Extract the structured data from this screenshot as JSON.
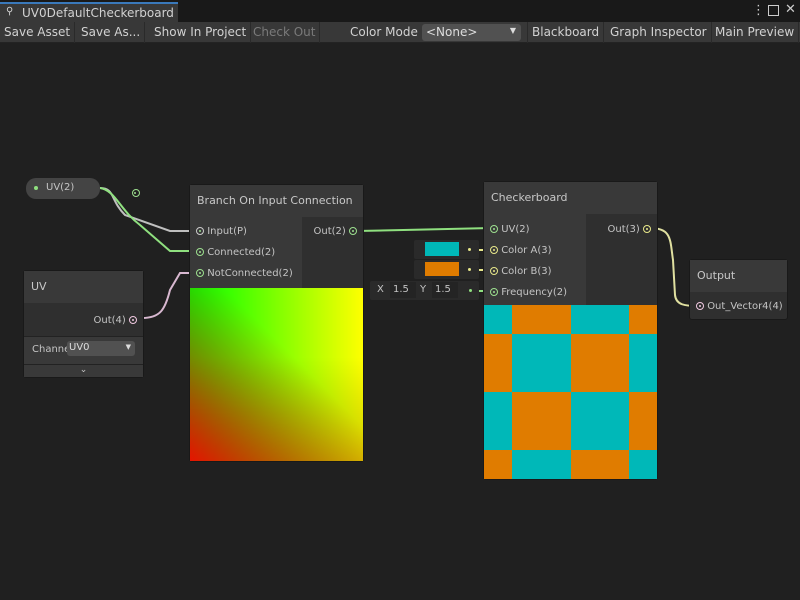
{
  "window": {
    "tab_title": "UV0DefaultCheckerboard",
    "menu_icon": "kebab-icon",
    "maximize_icon": "maximize-icon",
    "close_icon": "close-icon"
  },
  "toolbar": {
    "save_asset": "Save Asset",
    "save_as": "Save As...",
    "show_in_project": "Show In Project",
    "check_out": "Check Out",
    "color_mode_label": "Color Mode",
    "color_mode_value": "<None>",
    "blackboard": "Blackboard",
    "graph_inspector": "Graph Inspector",
    "main_preview": "Main Preview"
  },
  "nodes": {
    "uv_property": {
      "label": "UV(2)"
    },
    "uv": {
      "title": "UV",
      "out": "Out(4)",
      "channel_label": "Channe",
      "channel_value": "UV0"
    },
    "branch": {
      "title": "Branch On Input Connection",
      "inputs": [
        "Input(P)",
        "Connected(2)",
        "NotConnected(2)"
      ],
      "out": "Out(2)"
    },
    "checkerboard": {
      "title": "Checkerboard",
      "inputs": [
        "UV(2)",
        "Color A(3)",
        "Color B(3)",
        "Frequency(2)"
      ],
      "out": "Out(3)",
      "color_a": "#00b8b8",
      "color_b": "#e07c00",
      "freq_x_label": "X",
      "freq_x": "1.5",
      "freq_y_label": "Y",
      "freq_y": "1.5"
    },
    "output": {
      "title": "Output",
      "input": "Out_Vector4(4)"
    }
  }
}
